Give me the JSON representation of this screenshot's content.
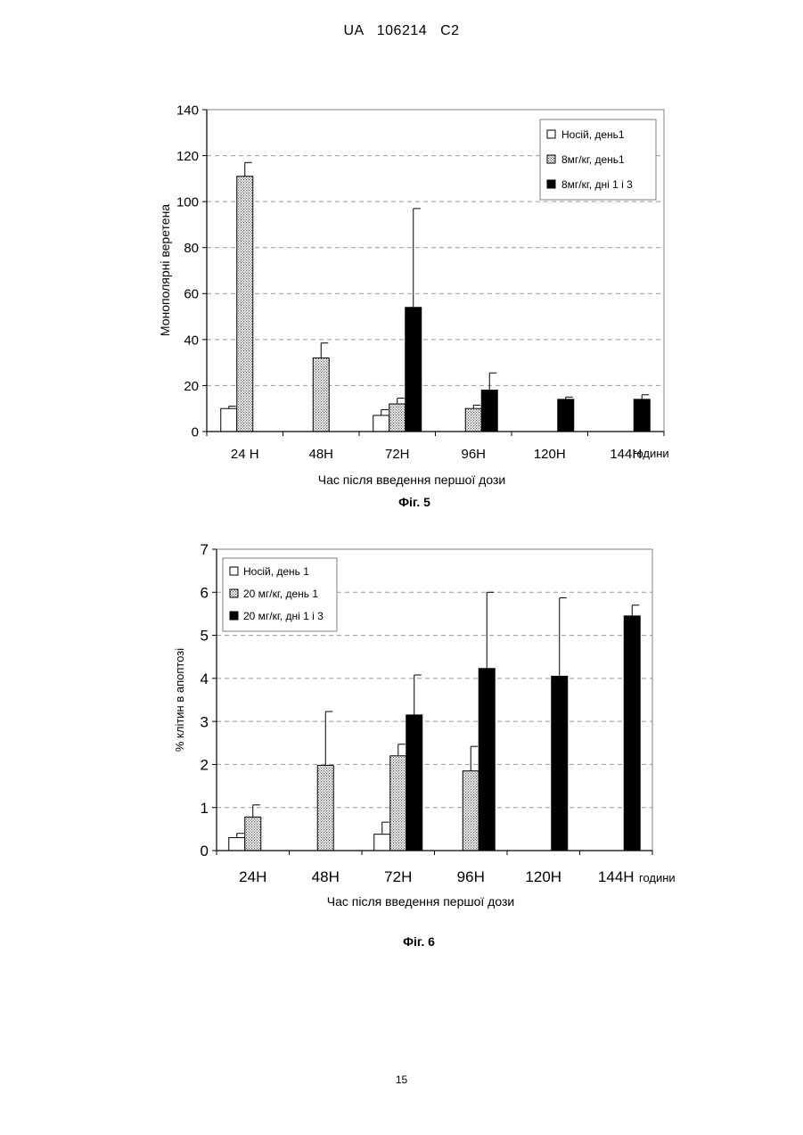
{
  "header": {
    "text": "UA 106214 C2"
  },
  "footer": {
    "page_number": "15"
  },
  "chart_data": [
    {
      "type": "bar",
      "figure_label": "Фіг. 5",
      "xlabel": "Час після введення першої дози",
      "ylabel": "Монополярні веретена",
      "x_unit_label": "години",
      "categories": [
        "24 Н",
        "48Н",
        "72Н",
        "96Н",
        "120Н",
        "144Н"
      ],
      "ylim": [
        0,
        140
      ],
      "yticks": [
        0,
        20,
        40,
        60,
        80,
        100,
        120,
        140
      ],
      "grid": "dashed horizontal",
      "legend_position": "top-right",
      "series": [
        {
          "name": "Носій, день1",
          "fill": "white",
          "values": [
            10,
            null,
            7,
            null,
            null,
            null
          ],
          "errors": [
            1,
            null,
            2.5,
            null,
            null,
            null
          ]
        },
        {
          "name": "8мг/кг, день1",
          "fill": "dotted",
          "values": [
            111,
            32,
            12,
            10,
            null,
            null
          ],
          "errors": [
            6,
            6.5,
            2.5,
            1.5,
            null,
            null
          ]
        },
        {
          "name": "8мг/кг, дні 1 і 3",
          "fill": "black",
          "values": [
            null,
            null,
            54,
            18,
            14,
            14
          ],
          "errors": [
            null,
            null,
            43,
            7.5,
            1,
            2
          ]
        }
      ]
    },
    {
      "type": "bar",
      "figure_label": "Фіг. 6",
      "xlabel": "Час після введення першої дози",
      "ylabel": "% клітин в апоптозі",
      "x_unit_label": "години",
      "categories": [
        "24Н",
        "48Н",
        "72Н",
        "96Н",
        "120Н",
        "144Н"
      ],
      "ylim": [
        0,
        7
      ],
      "yticks": [
        0,
        1,
        2,
        3,
        4,
        5,
        6,
        7
      ],
      "grid": "dashed horizontal",
      "legend_position": "top-left",
      "series": [
        {
          "name": "Носій, день 1",
          "fill": "white",
          "values": [
            0.3,
            null,
            0.38,
            null,
            null,
            null
          ],
          "errors": [
            0.1,
            null,
            0.28,
            null,
            null,
            null
          ]
        },
        {
          "name": "20 мг/кг, день 1",
          "fill": "dotted",
          "values": [
            0.78,
            1.98,
            2.2,
            1.85,
            null,
            null
          ],
          "errors": [
            0.28,
            1.25,
            0.27,
            0.57,
            null,
            null
          ]
        },
        {
          "name": "20 мг/кг, дні 1 і 3",
          "fill": "black",
          "values": [
            null,
            null,
            3.15,
            4.23,
            4.05,
            5.45
          ],
          "errors": [
            null,
            null,
            0.93,
            1.77,
            1.82,
            0.25
          ]
        }
      ]
    }
  ]
}
